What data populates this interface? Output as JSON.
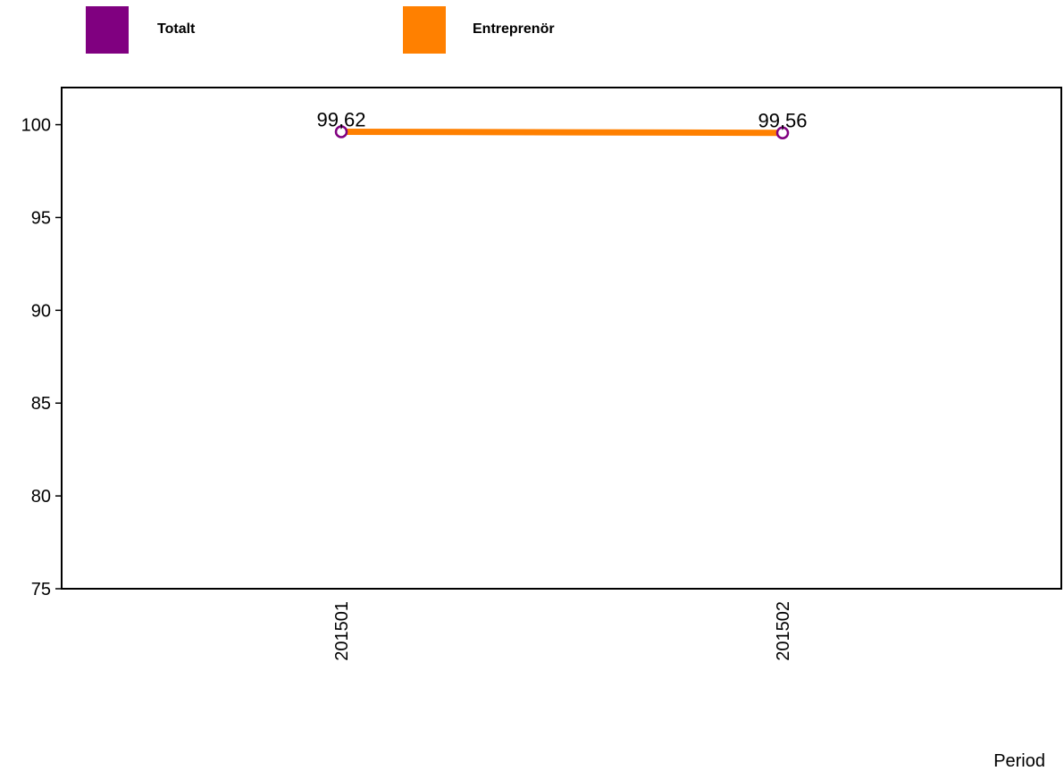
{
  "chart_data": {
    "type": "line",
    "categories": [
      "201501",
      "201502"
    ],
    "series": [
      {
        "name": "Totalt",
        "values": [
          99.62,
          99.56
        ],
        "color": "#800080"
      },
      {
        "name": "Entreprenör",
        "values": [
          99.62,
          99.56
        ],
        "color": "#FF8000"
      }
    ],
    "data_labels": [
      "99,62",
      "99,56"
    ],
    "yticks": [
      75,
      80,
      85,
      90,
      95,
      100
    ],
    "ylim": [
      75,
      102
    ],
    "xlabel": "Period",
    "ylabel": "",
    "legend_position": "top-left",
    "grid": false
  }
}
